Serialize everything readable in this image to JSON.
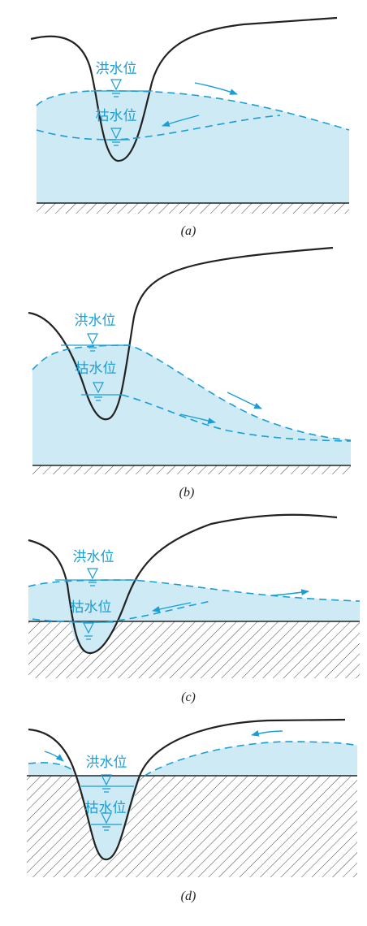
{
  "panels": [
    {
      "flood_label": "洪水位",
      "dry_label": "枯水位",
      "caption": "(a)"
    },
    {
      "flood_label": "洪水位",
      "dry_label": "枯水位",
      "caption": "(b)"
    },
    {
      "flood_label": "洪水位",
      "dry_label": "枯水位",
      "caption": "(c)"
    },
    {
      "flood_label": "洪水位",
      "dry_label": "枯水位",
      "caption": "(d)"
    }
  ]
}
